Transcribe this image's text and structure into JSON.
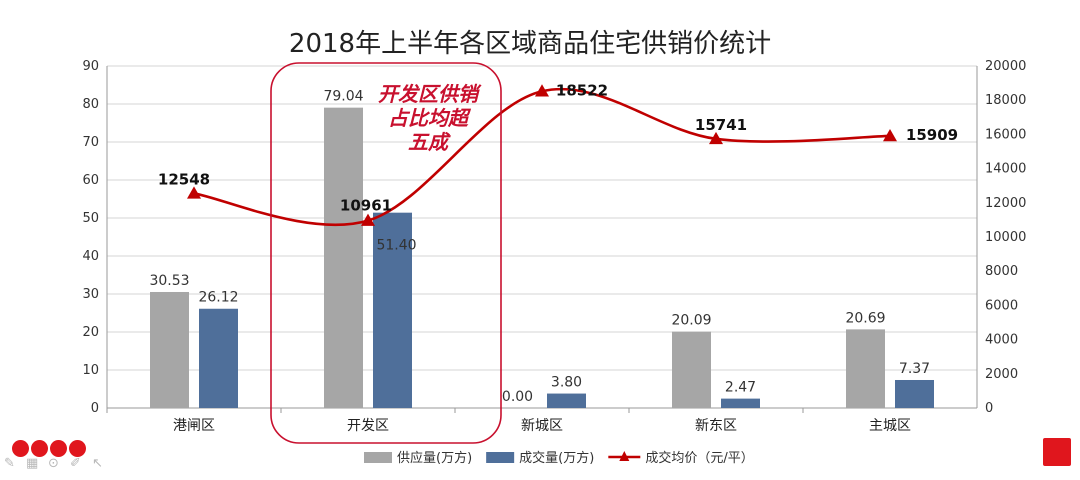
{
  "chart_data": {
    "type": "bar+line",
    "title": "2018年上半年各区域商品住宅供销价统计",
    "categories": [
      "港闸区",
      "开发区",
      "新城区",
      "新东区",
      "主城区"
    ],
    "y_left": {
      "min": 0,
      "max": 90,
      "ticks": [
        0,
        10,
        20,
        30,
        40,
        50,
        60,
        70,
        80,
        90
      ]
    },
    "y_right": {
      "min": 0,
      "max": 20000,
      "ticks": [
        0,
        2000,
        4000,
        6000,
        8000,
        10000,
        12000,
        14000,
        16000,
        18000,
        20000
      ]
    },
    "grid": true,
    "legend_position": "bottom",
    "series": [
      {
        "name": "供应量(万方)",
        "type": "bar",
        "axis": "left",
        "color": "#a6a6a6",
        "values": [
          30.53,
          79.04,
          0.0,
          20.09,
          20.69
        ],
        "labels": [
          "30.53",
          "79.04",
          "0.00",
          "20.09",
          "20.69"
        ]
      },
      {
        "name": "成交量(万方)",
        "type": "bar",
        "axis": "left",
        "color": "#4f6f9a",
        "values": [
          26.12,
          51.4,
          3.8,
          2.47,
          7.37
        ],
        "labels": [
          "26.12",
          "51.40",
          "3.80",
          "2.47",
          "7.37"
        ]
      },
      {
        "name": "成交均价（元/平）",
        "type": "line",
        "axis": "right",
        "color": "#c00000",
        "values": [
          12548,
          10961,
          18522,
          15741,
          15909
        ],
        "labels": [
          "12548",
          "10961",
          "18522",
          "15741",
          "15909"
        ]
      }
    ],
    "annotation": {
      "lines": [
        "开发区供销",
        "占比均超",
        "五成"
      ],
      "color": "#c8102e",
      "highlight_category": "开发区"
    }
  }
}
